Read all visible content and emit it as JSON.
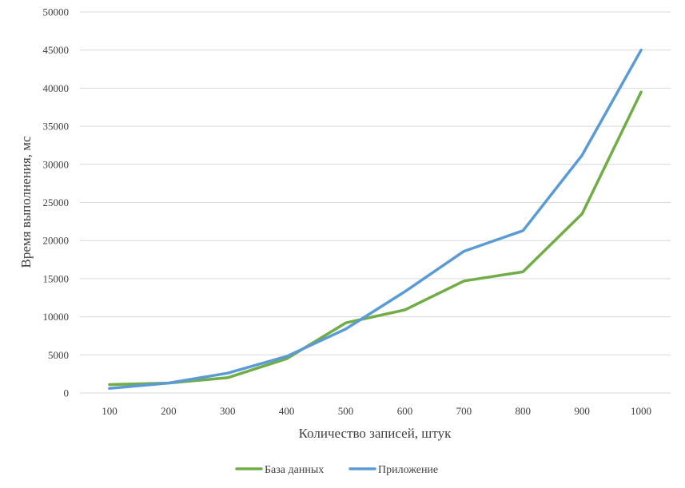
{
  "chart_data": {
    "type": "line",
    "title": "",
    "xlabel": "Количество записей, штук",
    "ylabel": "Время выполнения, мс",
    "categories": [
      "100",
      "200",
      "300",
      "400",
      "500",
      "600",
      "700",
      "800",
      "900",
      "1000"
    ],
    "ylim": [
      0,
      50000
    ],
    "yticks": [
      0,
      5000,
      10000,
      15000,
      20000,
      25000,
      30000,
      35000,
      40000,
      45000,
      50000
    ],
    "ytick_labels": [
      "0",
      "5000",
      "10000",
      "15000",
      "20000",
      "25000",
      "30000",
      "35000",
      "40000",
      "45000",
      "50000"
    ],
    "grid": true,
    "legend_position": "bottom",
    "series": [
      {
        "name": "База данных",
        "color": "#70ad47",
        "values": [
          1100,
          1300,
          2000,
          4500,
          9200,
          10900,
          14700,
          15900,
          23500,
          39500
        ]
      },
      {
        "name": "Приложение",
        "color": "#5b9bd5",
        "values": [
          600,
          1300,
          2600,
          4800,
          8400,
          13300,
          18600,
          21300,
          31200,
          45000
        ]
      }
    ]
  }
}
